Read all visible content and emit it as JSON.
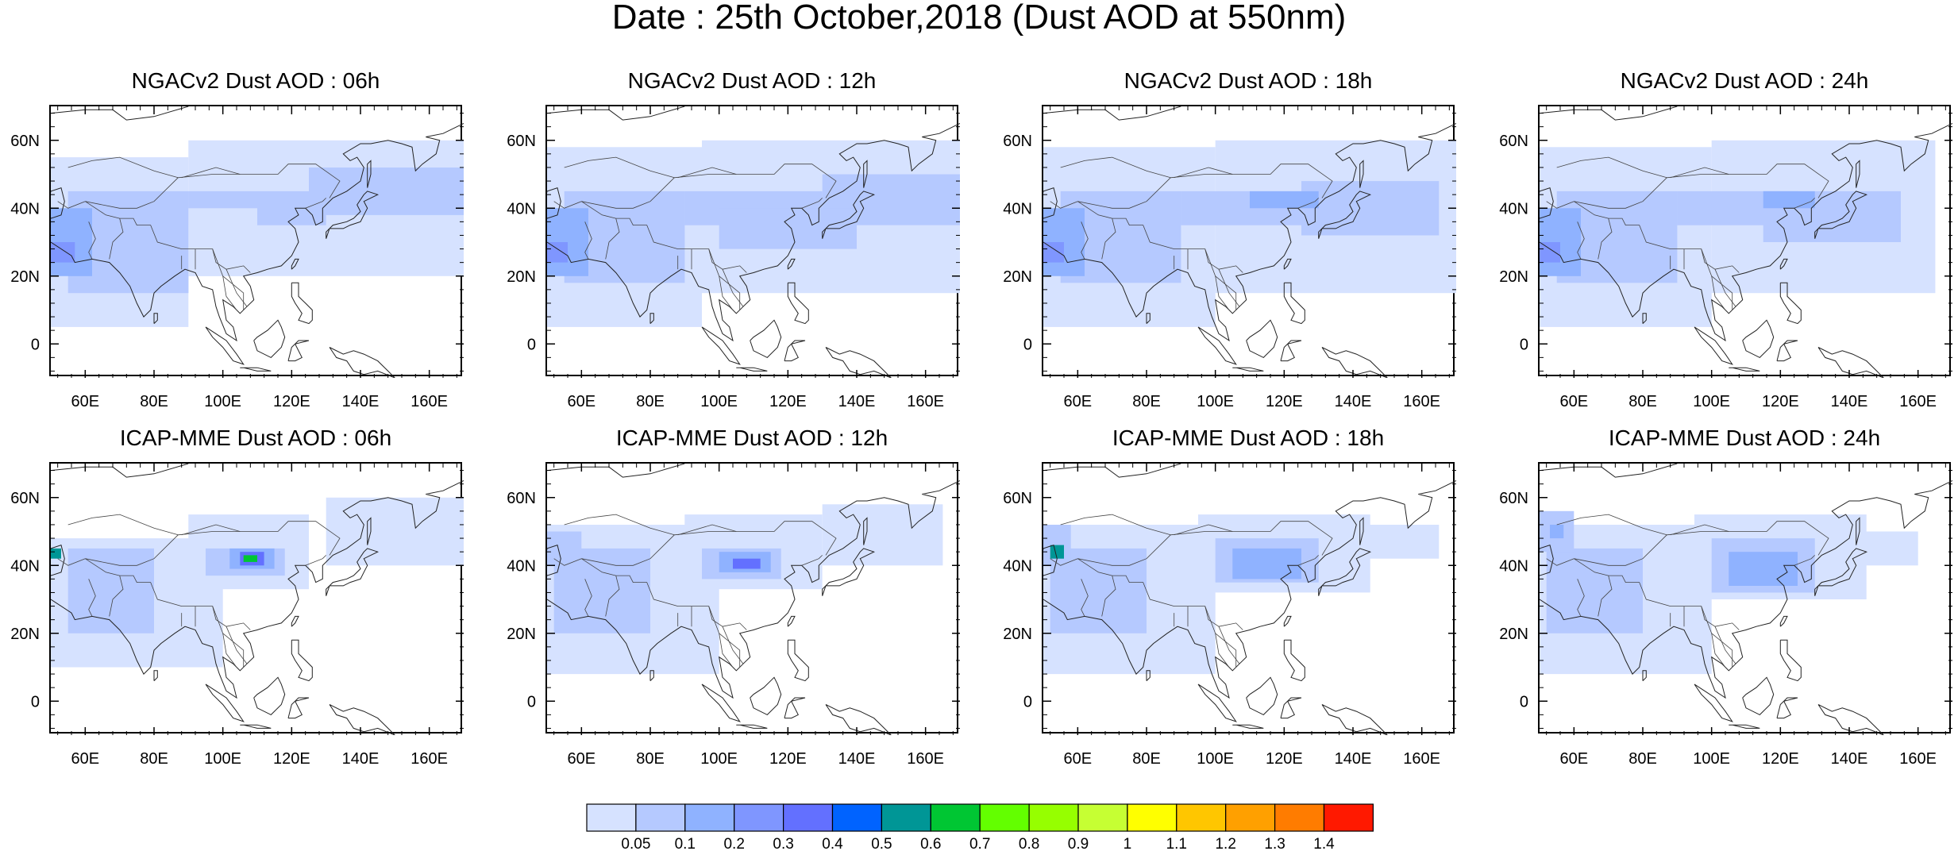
{
  "title": "Date : 25th October,2018 (Dust AOD at 550nm)",
  "panels": [
    {
      "title": "NGACv2 Dust AOD : 06h",
      "model": "NGACv2",
      "hour": "06h"
    },
    {
      "title": "NGACv2 Dust AOD : 12h",
      "model": "NGACv2",
      "hour": "12h"
    },
    {
      "title": "NGACv2 Dust AOD : 18h",
      "model": "NGACv2",
      "hour": "18h"
    },
    {
      "title": "NGACv2 Dust AOD : 24h",
      "model": "NGACv2",
      "hour": "24h"
    },
    {
      "title": "ICAP-MME Dust AOD : 06h",
      "model": "ICAP-MME",
      "hour": "06h"
    },
    {
      "title": "ICAP-MME Dust AOD : 12h",
      "model": "ICAP-MME",
      "hour": "12h"
    },
    {
      "title": "ICAP-MME Dust AOD : 18h",
      "model": "ICAP-MME",
      "hour": "18h"
    },
    {
      "title": "ICAP-MME Dust AOD : 24h",
      "model": "ICAP-MME",
      "hour": "24h"
    }
  ],
  "axes": {
    "lon_ticks": [
      "60E",
      "80E",
      "100E",
      "120E",
      "140E",
      "160E"
    ],
    "lon_values": [
      60,
      80,
      100,
      120,
      140,
      160
    ],
    "lat_ticks": [
      "60N",
      "40N",
      "20N",
      "0"
    ],
    "lat_values": [
      60,
      40,
      20,
      0
    ],
    "lon_range": [
      50,
      170
    ],
    "lat_range": [
      -10,
      70
    ]
  },
  "colorbar": {
    "labels": [
      "0.05",
      "0.1",
      "0.2",
      "0.3",
      "0.4",
      "0.5",
      "0.6",
      "0.7",
      "0.8",
      "0.9",
      "1",
      "1.1",
      "1.2",
      "1.3",
      "1.4"
    ],
    "colors": [
      "#ffffff",
      "#d6e2ff",
      "#b5c9ff",
      "#8fb2ff",
      "#7f96ff",
      "#6370ff",
      "#0063ff",
      "#009696",
      "#00c633",
      "#63ff00",
      "#96ff00",
      "#c6ff33",
      "#ffff00",
      "#ffc600",
      "#ffa000",
      "#ff7c00",
      "#ff1900"
    ]
  }
}
